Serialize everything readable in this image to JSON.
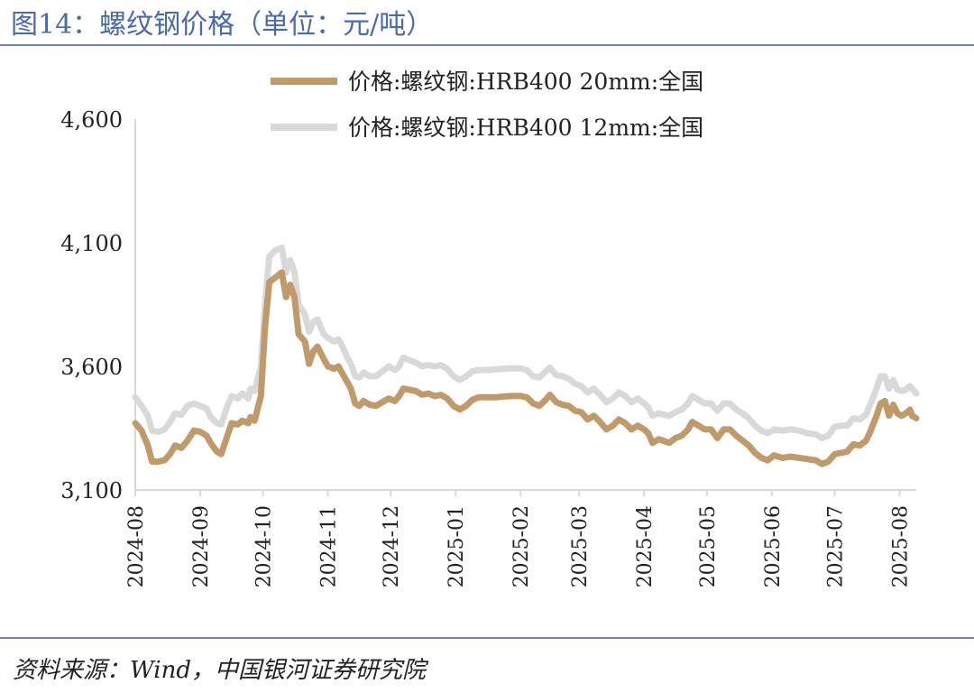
{
  "figure": {
    "title": "图14：螺纹钢价格（单位：元/吨）",
    "source": "资料来源：Wind，中国银河证券研究院"
  },
  "chart_data": {
    "type": "line",
    "title": "",
    "xlabel": "",
    "ylabel": "",
    "ylim": [
      3100,
      4600
    ],
    "yticks": [
      3100,
      3600,
      4100,
      4600
    ],
    "ytick_labels": [
      "3,100",
      "3,600",
      "4,100",
      "4,600"
    ],
    "xticks": [
      "2024-08-01",
      "2024-09-01",
      "2024-10-01",
      "2024-11-01",
      "2024-12-01",
      "2025-01-01",
      "2025-02-01",
      "2025-03-01",
      "2025-04-01",
      "2025-05-01",
      "2025-06-01",
      "2025-07-01",
      "2025-08-01"
    ],
    "xtick_labels": [
      "2024-08",
      "2024-09",
      "2024-10",
      "2024-11",
      "2024-12",
      "2025-01",
      "2025-02",
      "2025-03",
      "2025-04",
      "2025-05",
      "2025-06",
      "2025-07",
      "2025-08"
    ],
    "xlim": [
      "2024-08-01",
      "2025-08-09"
    ],
    "grid": false,
    "legend_position": "top",
    "series": [
      {
        "name": "价格:螺纹钢:HRB400 20mm:全国",
        "color": "#c19a6b",
        "points": [
          [
            "2024-08-01",
            3370
          ],
          [
            "2024-08-04",
            3340
          ],
          [
            "2024-08-07",
            3280
          ],
          [
            "2024-08-09",
            3215
          ],
          [
            "2024-08-12",
            3215
          ],
          [
            "2024-08-15",
            3220
          ],
          [
            "2024-08-18",
            3250
          ],
          [
            "2024-08-20",
            3280
          ],
          [
            "2024-08-23",
            3270
          ],
          [
            "2024-08-26",
            3300
          ],
          [
            "2024-08-29",
            3340
          ],
          [
            "2024-09-01",
            3335
          ],
          [
            "2024-09-04",
            3320
          ],
          [
            "2024-09-06",
            3290
          ],
          [
            "2024-09-09",
            3255
          ],
          [
            "2024-09-11",
            3245
          ],
          [
            "2024-09-14",
            3320
          ],
          [
            "2024-09-16",
            3370
          ],
          [
            "2024-09-19",
            3365
          ],
          [
            "2024-09-21",
            3380
          ],
          [
            "2024-09-24",
            3370
          ],
          [
            "2024-09-25",
            3395
          ],
          [
            "2024-09-27",
            3380
          ],
          [
            "2024-09-30",
            3480
          ],
          [
            "2024-10-02",
            3760
          ],
          [
            "2024-10-04",
            3940
          ],
          [
            "2024-10-07",
            3960
          ],
          [
            "2024-10-10",
            3980
          ],
          [
            "2024-10-12",
            3880
          ],
          [
            "2024-10-14",
            3930
          ],
          [
            "2024-10-16",
            3880
          ],
          [
            "2024-10-18",
            3730
          ],
          [
            "2024-10-21",
            3700
          ],
          [
            "2024-10-23",
            3610
          ],
          [
            "2024-10-25",
            3660
          ],
          [
            "2024-10-27",
            3680
          ],
          [
            "2024-10-30",
            3630
          ],
          [
            "2024-11-01",
            3600
          ],
          [
            "2024-11-04",
            3590
          ],
          [
            "2024-11-06",
            3600
          ],
          [
            "2024-11-08",
            3570
          ],
          [
            "2024-11-10",
            3540
          ],
          [
            "2024-11-12",
            3510
          ],
          [
            "2024-11-14",
            3450
          ],
          [
            "2024-11-16",
            3440
          ],
          [
            "2024-11-18",
            3460
          ],
          [
            "2024-11-21",
            3445
          ],
          [
            "2024-11-24",
            3440
          ],
          [
            "2024-11-27",
            3455
          ],
          [
            "2024-11-30",
            3470
          ],
          [
            "2024-12-03",
            3460
          ],
          [
            "2024-12-05",
            3480
          ],
          [
            "2024-12-07",
            3510
          ],
          [
            "2024-12-10",
            3505
          ],
          [
            "2024-12-13",
            3500
          ],
          [
            "2024-12-16",
            3485
          ],
          [
            "2024-12-19",
            3490
          ],
          [
            "2024-12-22",
            3480
          ],
          [
            "2024-12-25",
            3485
          ],
          [
            "2024-12-28",
            3470
          ],
          [
            "2024-12-31",
            3440
          ],
          [
            "2025-01-03",
            3425
          ],
          [
            "2025-01-06",
            3440
          ],
          [
            "2025-01-09",
            3465
          ],
          [
            "2025-01-12",
            3475
          ],
          [
            "2025-01-16",
            3475
          ],
          [
            "2025-01-20",
            3475
          ],
          [
            "2025-01-24",
            3478
          ],
          [
            "2025-01-28",
            3480
          ],
          [
            "2025-02-01",
            3480
          ],
          [
            "2025-02-04",
            3475
          ],
          [
            "2025-02-07",
            3450
          ],
          [
            "2025-02-10",
            3440
          ],
          [
            "2025-02-13",
            3465
          ],
          [
            "2025-02-15",
            3485
          ],
          [
            "2025-02-18",
            3455
          ],
          [
            "2025-02-21",
            3445
          ],
          [
            "2025-02-24",
            3440
          ],
          [
            "2025-02-27",
            3420
          ],
          [
            "2025-03-02",
            3415
          ],
          [
            "2025-03-05",
            3385
          ],
          [
            "2025-03-08",
            3400
          ],
          [
            "2025-03-11",
            3375
          ],
          [
            "2025-03-14",
            3345
          ],
          [
            "2025-03-17",
            3360
          ],
          [
            "2025-03-20",
            3385
          ],
          [
            "2025-03-23",
            3370
          ],
          [
            "2025-03-26",
            3345
          ],
          [
            "2025-03-29",
            3360
          ],
          [
            "2025-04-01",
            3345
          ],
          [
            "2025-04-03",
            3330
          ],
          [
            "2025-04-05",
            3290
          ],
          [
            "2025-04-08",
            3305
          ],
          [
            "2025-04-10",
            3300
          ],
          [
            "2025-04-13",
            3290
          ],
          [
            "2025-04-16",
            3310
          ],
          [
            "2025-04-19",
            3320
          ],
          [
            "2025-04-22",
            3345
          ],
          [
            "2025-04-24",
            3375
          ],
          [
            "2025-04-27",
            3360
          ],
          [
            "2025-04-30",
            3345
          ],
          [
            "2025-05-03",
            3345
          ],
          [
            "2025-05-06",
            3310
          ],
          [
            "2025-05-09",
            3345
          ],
          [
            "2025-05-12",
            3345
          ],
          [
            "2025-05-15",
            3320
          ],
          [
            "2025-05-18",
            3300
          ],
          [
            "2025-05-21",
            3280
          ],
          [
            "2025-05-24",
            3250
          ],
          [
            "2025-05-27",
            3230
          ],
          [
            "2025-05-30",
            3220
          ],
          [
            "2025-06-02",
            3240
          ],
          [
            "2025-06-06",
            3230
          ],
          [
            "2025-06-10",
            3235
          ],
          [
            "2025-06-14",
            3230
          ],
          [
            "2025-06-18",
            3225
          ],
          [
            "2025-06-22",
            3220
          ],
          [
            "2025-06-25",
            3205
          ],
          [
            "2025-06-28",
            3215
          ],
          [
            "2025-07-01",
            3245
          ],
          [
            "2025-07-04",
            3250
          ],
          [
            "2025-07-07",
            3255
          ],
          [
            "2025-07-10",
            3285
          ],
          [
            "2025-07-13",
            3280
          ],
          [
            "2025-07-16",
            3300
          ],
          [
            "2025-07-18",
            3335
          ],
          [
            "2025-07-21",
            3400
          ],
          [
            "2025-07-23",
            3450
          ],
          [
            "2025-07-25",
            3460
          ],
          [
            "2025-07-27",
            3400
          ],
          [
            "2025-07-29",
            3445
          ],
          [
            "2025-07-31",
            3410
          ],
          [
            "2025-08-02",
            3400
          ],
          [
            "2025-08-04",
            3410
          ],
          [
            "2025-08-06",
            3425
          ],
          [
            "2025-08-07",
            3400
          ],
          [
            "2025-08-09",
            3390
          ]
        ]
      },
      {
        "name": "价格:螺纹钢:HRB400 12mm:全国",
        "color": "#d9d9d9",
        "points": [
          [
            "2024-08-01",
            3475
          ],
          [
            "2024-08-04",
            3440
          ],
          [
            "2024-08-07",
            3400
          ],
          [
            "2024-08-09",
            3340
          ],
          [
            "2024-08-12",
            3335
          ],
          [
            "2024-08-15",
            3345
          ],
          [
            "2024-08-18",
            3380
          ],
          [
            "2024-08-20",
            3410
          ],
          [
            "2024-08-23",
            3405
          ],
          [
            "2024-08-26",
            3440
          ],
          [
            "2024-08-29",
            3450
          ],
          [
            "2024-09-01",
            3440
          ],
          [
            "2024-09-04",
            3430
          ],
          [
            "2024-09-06",
            3395
          ],
          [
            "2024-09-09",
            3370
          ],
          [
            "2024-09-11",
            3365
          ],
          [
            "2024-09-14",
            3440
          ],
          [
            "2024-09-16",
            3480
          ],
          [
            "2024-09-19",
            3470
          ],
          [
            "2024-09-21",
            3490
          ],
          [
            "2024-09-24",
            3470
          ],
          [
            "2024-09-25",
            3510
          ],
          [
            "2024-09-27",
            3500
          ],
          [
            "2024-09-30",
            3600
          ],
          [
            "2024-10-02",
            3850
          ],
          [
            "2024-10-04",
            4045
          ],
          [
            "2024-10-07",
            4070
          ],
          [
            "2024-10-10",
            4080
          ],
          [
            "2024-10-12",
            3980
          ],
          [
            "2024-10-14",
            4030
          ],
          [
            "2024-10-16",
            3980
          ],
          [
            "2024-10-18",
            3850
          ],
          [
            "2024-10-21",
            3810
          ],
          [
            "2024-10-23",
            3740
          ],
          [
            "2024-10-25",
            3780
          ],
          [
            "2024-10-27",
            3790
          ],
          [
            "2024-10-30",
            3730
          ],
          [
            "2024-11-01",
            3715
          ],
          [
            "2024-11-04",
            3700
          ],
          [
            "2024-11-06",
            3710
          ],
          [
            "2024-11-08",
            3680
          ],
          [
            "2024-11-10",
            3640
          ],
          [
            "2024-11-12",
            3610
          ],
          [
            "2024-11-14",
            3560
          ],
          [
            "2024-11-16",
            3555
          ],
          [
            "2024-11-18",
            3575
          ],
          [
            "2024-11-21",
            3560
          ],
          [
            "2024-11-24",
            3560
          ],
          [
            "2024-11-27",
            3580
          ],
          [
            "2024-11-30",
            3600
          ],
          [
            "2024-12-03",
            3585
          ],
          [
            "2024-12-05",
            3600
          ],
          [
            "2024-12-07",
            3635
          ],
          [
            "2024-12-10",
            3625
          ],
          [
            "2024-12-13",
            3615
          ],
          [
            "2024-12-16",
            3600
          ],
          [
            "2024-12-19",
            3605
          ],
          [
            "2024-12-22",
            3600
          ],
          [
            "2024-12-25",
            3605
          ],
          [
            "2024-12-28",
            3590
          ],
          [
            "2024-12-31",
            3560
          ],
          [
            "2025-01-03",
            3545
          ],
          [
            "2025-01-06",
            3560
          ],
          [
            "2025-01-09",
            3580
          ],
          [
            "2025-01-12",
            3585
          ],
          [
            "2025-01-16",
            3585
          ],
          [
            "2025-01-20",
            3588
          ],
          [
            "2025-01-24",
            3590
          ],
          [
            "2025-01-28",
            3592
          ],
          [
            "2025-02-01",
            3592
          ],
          [
            "2025-02-04",
            3585
          ],
          [
            "2025-02-07",
            3560
          ],
          [
            "2025-02-10",
            3555
          ],
          [
            "2025-02-13",
            3580
          ],
          [
            "2025-02-15",
            3595
          ],
          [
            "2025-02-18",
            3565
          ],
          [
            "2025-02-21",
            3560
          ],
          [
            "2025-02-24",
            3550
          ],
          [
            "2025-02-27",
            3530
          ],
          [
            "2025-03-02",
            3520
          ],
          [
            "2025-03-05",
            3495
          ],
          [
            "2025-03-08",
            3510
          ],
          [
            "2025-03-11",
            3485
          ],
          [
            "2025-03-14",
            3455
          ],
          [
            "2025-03-17",
            3470
          ],
          [
            "2025-03-20",
            3495
          ],
          [
            "2025-03-23",
            3480
          ],
          [
            "2025-03-26",
            3455
          ],
          [
            "2025-03-29",
            3470
          ],
          [
            "2025-04-01",
            3450
          ],
          [
            "2025-04-03",
            3435
          ],
          [
            "2025-04-05",
            3400
          ],
          [
            "2025-04-08",
            3410
          ],
          [
            "2025-04-10",
            3405
          ],
          [
            "2025-04-13",
            3400
          ],
          [
            "2025-04-16",
            3415
          ],
          [
            "2025-04-19",
            3425
          ],
          [
            "2025-04-22",
            3450
          ],
          [
            "2025-04-24",
            3480
          ],
          [
            "2025-04-27",
            3465
          ],
          [
            "2025-04-30",
            3450
          ],
          [
            "2025-05-03",
            3450
          ],
          [
            "2025-05-06",
            3420
          ],
          [
            "2025-05-09",
            3450
          ],
          [
            "2025-05-12",
            3450
          ],
          [
            "2025-05-15",
            3425
          ],
          [
            "2025-05-18",
            3410
          ],
          [
            "2025-05-21",
            3390
          ],
          [
            "2025-05-24",
            3360
          ],
          [
            "2025-05-27",
            3340
          ],
          [
            "2025-05-30",
            3330
          ],
          [
            "2025-06-02",
            3345
          ],
          [
            "2025-06-06",
            3340
          ],
          [
            "2025-06-10",
            3345
          ],
          [
            "2025-06-14",
            3340
          ],
          [
            "2025-06-18",
            3330
          ],
          [
            "2025-06-22",
            3325
          ],
          [
            "2025-06-25",
            3310
          ],
          [
            "2025-06-28",
            3320
          ],
          [
            "2025-07-01",
            3355
          ],
          [
            "2025-07-04",
            3360
          ],
          [
            "2025-07-07",
            3360
          ],
          [
            "2025-07-10",
            3390
          ],
          [
            "2025-07-13",
            3385
          ],
          [
            "2025-07-16",
            3405
          ],
          [
            "2025-07-18",
            3445
          ],
          [
            "2025-07-21",
            3510
          ],
          [
            "2025-07-23",
            3560
          ],
          [
            "2025-07-25",
            3560
          ],
          [
            "2025-07-27",
            3510
          ],
          [
            "2025-07-29",
            3545
          ],
          [
            "2025-07-31",
            3505
          ],
          [
            "2025-08-02",
            3500
          ],
          [
            "2025-08-04",
            3505
          ],
          [
            "2025-08-06",
            3520
          ],
          [
            "2025-08-07",
            3510
          ],
          [
            "2025-08-09",
            3490
          ]
        ]
      }
    ]
  }
}
